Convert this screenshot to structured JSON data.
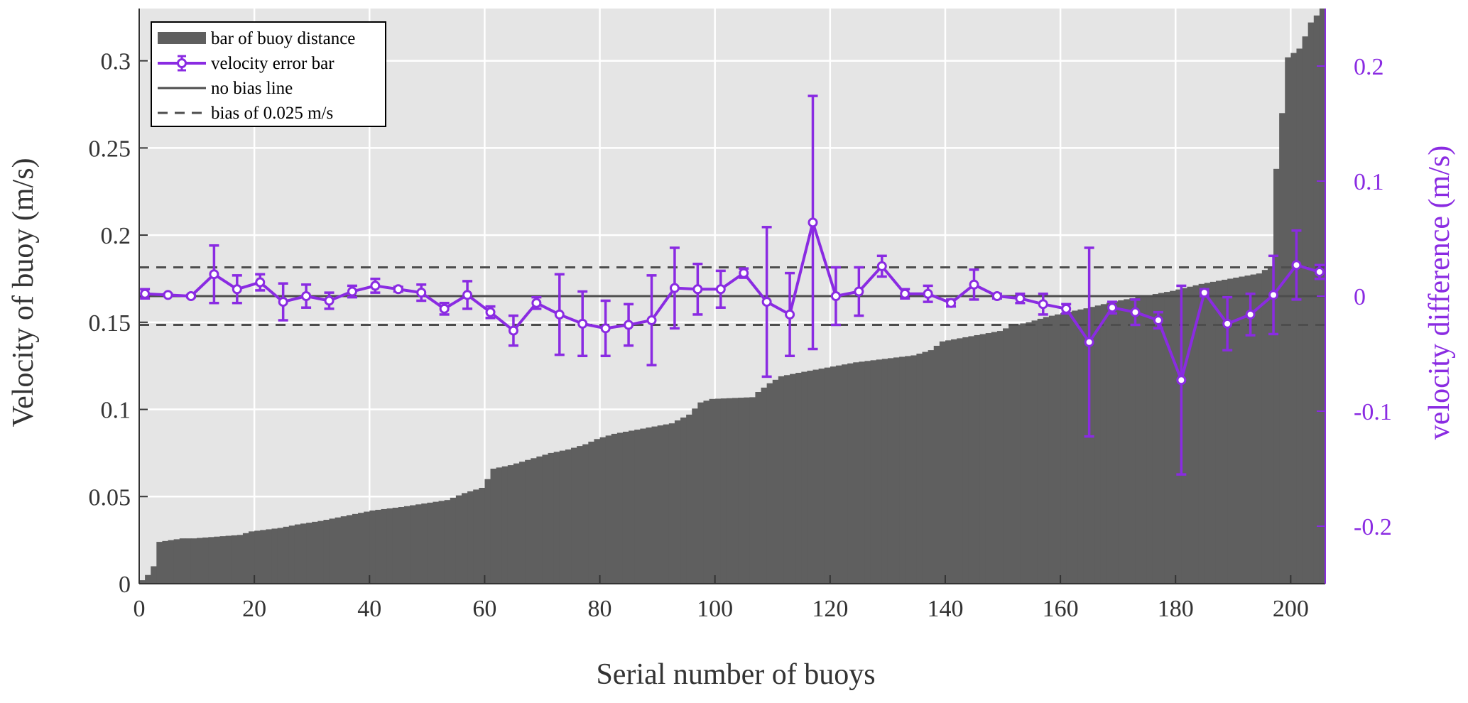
{
  "chart_data": {
    "type": "bar",
    "xlabel": "Serial number of buoys",
    "ylabel": "Velocity of buoy (m/s)",
    "y2label": "velocity difference (m/s)",
    "xlim": [
      0,
      206
    ],
    "ylim": [
      0,
      0.33
    ],
    "y2lim": [
      -0.25,
      0.25
    ],
    "xticks": [
      "0",
      "20",
      "40",
      "60",
      "80",
      "100",
      "120",
      "140",
      "160",
      "180",
      "200"
    ],
    "yticks": [
      "0",
      "0.05",
      "0.1",
      "0.15",
      "0.2",
      "0.25",
      "0.3"
    ],
    "y2ticks": [
      "-0.2",
      "-0.1",
      "0",
      "0.1",
      "0.2"
    ],
    "grid": true,
    "legend_position": "top-left",
    "legend": [
      {
        "label": "bar of buoy distance",
        "style": "bar"
      },
      {
        "label": "velocity error bar",
        "style": "errorbar"
      },
      {
        "label": "no bias line",
        "style": "solid"
      },
      {
        "label": "bias of 0.025 m/s",
        "style": "dashed"
      }
    ],
    "bar_profile": [
      [
        1,
        0.002
      ],
      [
        2,
        0.005
      ],
      [
        3,
        0.01
      ],
      [
        4,
        0.024
      ],
      [
        6,
        0.025
      ],
      [
        8,
        0.026
      ],
      [
        10,
        0.026
      ],
      [
        14,
        0.027
      ],
      [
        18,
        0.028
      ],
      [
        20,
        0.03
      ],
      [
        25,
        0.032
      ],
      [
        28,
        0.034
      ],
      [
        30,
        0.035
      ],
      [
        32,
        0.036
      ],
      [
        35,
        0.038
      ],
      [
        38,
        0.04
      ],
      [
        41,
        0.042
      ],
      [
        46,
        0.044
      ],
      [
        50,
        0.046
      ],
      [
        54,
        0.048
      ],
      [
        57,
        0.052
      ],
      [
        60,
        0.055
      ],
      [
        61,
        0.06
      ],
      [
        62,
        0.066
      ],
      [
        65,
        0.068
      ],
      [
        67,
        0.07
      ],
      [
        70,
        0.073
      ],
      [
        72,
        0.075
      ],
      [
        75,
        0.077
      ],
      [
        78,
        0.08
      ],
      [
        80,
        0.083
      ],
      [
        83,
        0.086
      ],
      [
        88,
        0.089
      ],
      [
        93,
        0.092
      ],
      [
        96,
        0.097
      ],
      [
        98,
        0.104
      ],
      [
        100,
        0.106
      ],
      [
        107,
        0.107
      ],
      [
        108,
        0.11
      ],
      [
        110,
        0.115
      ],
      [
        112,
        0.119
      ],
      [
        115,
        0.121
      ],
      [
        120,
        0.124
      ],
      [
        125,
        0.127
      ],
      [
        130,
        0.129
      ],
      [
        135,
        0.131
      ],
      [
        138,
        0.134
      ],
      [
        140,
        0.139
      ],
      [
        145,
        0.142
      ],
      [
        150,
        0.145
      ],
      [
        152,
        0.148
      ],
      [
        155,
        0.15
      ],
      [
        158,
        0.153
      ],
      [
        162,
        0.156
      ],
      [
        165,
        0.158
      ],
      [
        170,
        0.162
      ],
      [
        175,
        0.165
      ],
      [
        180,
        0.168
      ],
      [
        185,
        0.172
      ],
      [
        190,
        0.175
      ],
      [
        195,
        0.178
      ],
      [
        197,
        0.182
      ],
      [
        198,
        0.238
      ],
      [
        200,
        0.302
      ],
      [
        202,
        0.307
      ],
      [
        203,
        0.314
      ],
      [
        204,
        0.322
      ],
      [
        205,
        0.326
      ],
      [
        206,
        0.33
      ]
    ],
    "series": [
      {
        "name": "velocity error bar",
        "x": [
          1,
          5,
          9,
          13,
          17,
          21,
          25,
          29,
          33,
          37,
          41,
          45,
          49,
          53,
          57,
          61,
          65,
          69,
          73,
          77,
          81,
          85,
          89,
          93,
          97,
          101,
          105,
          109,
          113,
          117,
          121,
          125,
          129,
          133,
          137,
          141,
          145,
          149,
          153,
          157,
          161,
          165,
          169,
          173,
          177,
          181,
          185,
          189,
          193,
          197,
          201,
          205
        ],
        "y": [
          0.002,
          0.001,
          0.0,
          0.019,
          0.006,
          0.012,
          -0.005,
          0.0,
          -0.004,
          0.004,
          0.009,
          0.006,
          0.003,
          -0.011,
          0.001,
          -0.014,
          -0.03,
          -0.006,
          -0.016,
          -0.024,
          -0.028,
          -0.025,
          -0.021,
          0.007,
          0.006,
          0.006,
          0.02,
          -0.005,
          -0.016,
          0.064,
          0.0,
          0.004,
          0.026,
          0.002,
          0.002,
          -0.006,
          0.01,
          0.0,
          -0.002,
          -0.007,
          -0.011,
          -0.04,
          -0.01,
          -0.014,
          -0.021,
          -0.073,
          0.003,
          -0.024,
          -0.016,
          0.001,
          0.027,
          0.021
        ],
        "err": [
          0.004,
          0.001,
          0.001,
          0.025,
          0.012,
          0.007,
          0.016,
          0.01,
          0.007,
          0.005,
          0.006,
          0.002,
          0.007,
          0.005,
          0.012,
          0.005,
          0.013,
          0.005,
          0.035,
          0.028,
          0.024,
          0.018,
          0.039,
          0.035,
          0.022,
          0.016,
          0.004,
          0.065,
          0.036,
          0.11,
          0.025,
          0.021,
          0.009,
          0.004,
          0.007,
          0.003,
          0.013,
          0.002,
          0.004,
          0.009,
          0.004,
          0.082,
          0.005,
          0.011,
          0.007,
          0.082,
          0.003,
          0.023,
          0.018,
          0.034,
          0.03,
          0.006
        ]
      }
    ],
    "reference_lines": {
      "no_bias": 0,
      "bias": 0.025
    }
  }
}
